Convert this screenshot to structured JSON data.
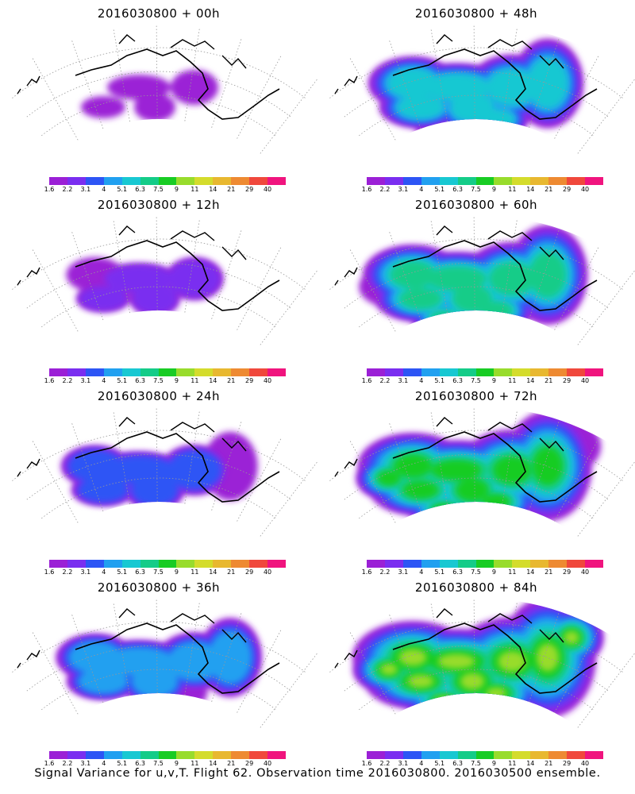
{
  "colorbar": {
    "colors": [
      "#9b20d6",
      "#7a2ef0",
      "#2d55f5",
      "#21a0f0",
      "#18c8d2",
      "#14cc88",
      "#18cc24",
      "#98dc2c",
      "#d4dc2c",
      "#e8b830",
      "#ee8a32",
      "#f0483c",
      "#f0147e"
    ],
    "labels": [
      "1.6",
      "2.2",
      "3.1",
      "4",
      "5.1",
      "6.3",
      "7.5",
      "9",
      "11",
      "14",
      "21",
      "29",
      "40"
    ]
  },
  "panels": [
    {
      "title": "2016030800 + 00h",
      "intensity": 0
    },
    {
      "title": "2016030800 + 48h",
      "intensity": 4
    },
    {
      "title": "2016030800 + 12h",
      "intensity": 1
    },
    {
      "title": "2016030800 + 60h",
      "intensity": 5
    },
    {
      "title": "2016030800 + 24h",
      "intensity": 2
    },
    {
      "title": "2016030800 + 72h",
      "intensity": 6
    },
    {
      "title": "2016030800 + 36h",
      "intensity": 3
    },
    {
      "title": "2016030800 + 84h",
      "intensity": 7
    }
  ],
  "caption": "Signal Variance for u,v,T. Flight 62. Observation time 2016030800. 2016030500 ensemble."
}
